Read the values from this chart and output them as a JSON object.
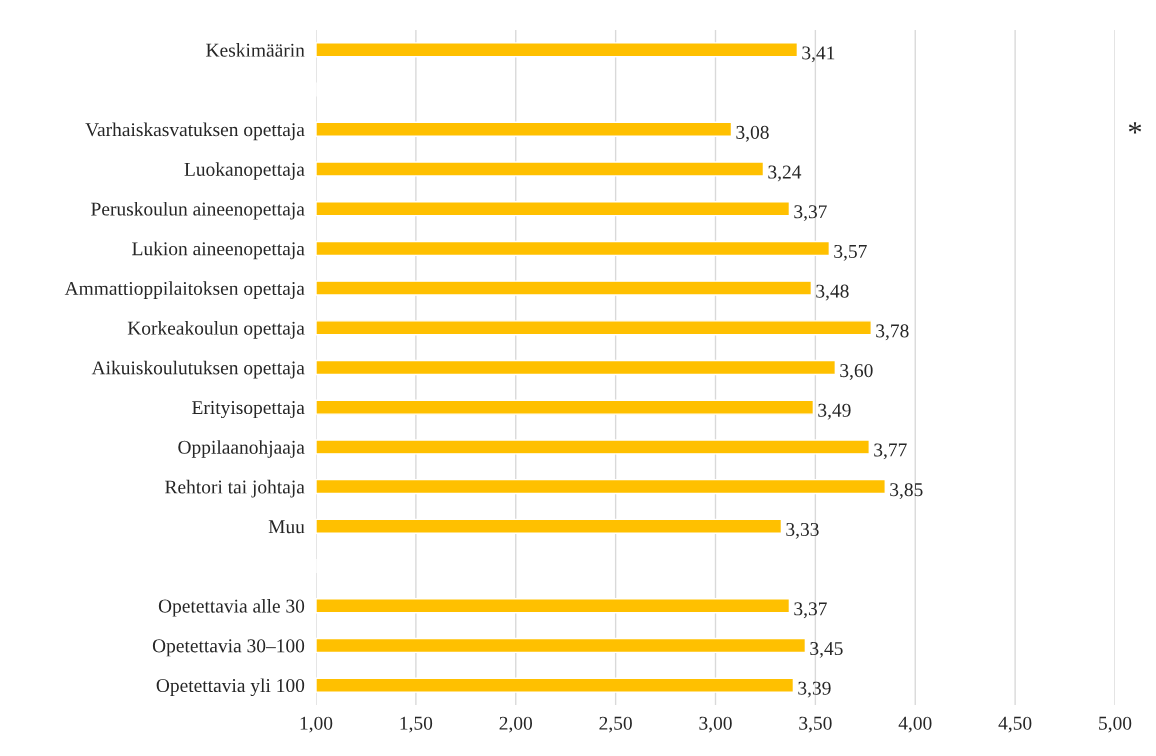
{
  "chart_data": {
    "type": "bar",
    "orientation": "horizontal",
    "categories": [
      "Keskimäärin",
      null,
      "Varhaiskasvatuksen opettaja",
      "Luokanopettaja",
      "Peruskoulun aineenopettaja",
      "Lukion aineenopettaja",
      "Ammattioppilaitoksen opettaja",
      "Korkeakoulun opettaja",
      "Aikuiskoulutuksen opettaja",
      "Erityisopettaja",
      "Oppilaanohjaaja",
      "Rehtori tai johtaja",
      "Muu",
      null,
      "Opetettavia alle 30",
      "Opetettavia 30–100",
      "Opetettavia yli 100"
    ],
    "values": [
      3.41,
      null,
      3.08,
      3.24,
      3.37,
      3.57,
      3.48,
      3.78,
      3.6,
      3.49,
      3.77,
      3.85,
      3.33,
      null,
      3.37,
      3.45,
      3.39
    ],
    "value_labels": [
      "3,41",
      null,
      "3,08",
      "3,24",
      "3,37",
      "3,57",
      "3,48",
      "3,78",
      "3,60",
      "3,49",
      "3,77",
      "3,85",
      "3,33",
      null,
      "3,37",
      "3,45",
      "3,39"
    ],
    "color": "#ffc000",
    "xlim": [
      1,
      5
    ],
    "xticks": [
      {
        "value": 1,
        "label": "1,00"
      },
      {
        "value": 1.5,
        "label": "1,50"
      },
      {
        "value": 2,
        "label": "2,00"
      },
      {
        "value": 2.5,
        "label": "2,50"
      },
      {
        "value": 3,
        "label": "3,00"
      },
      {
        "value": 3.5,
        "label": "3,50"
      },
      {
        "value": 4,
        "label": "4,00"
      },
      {
        "value": 4.5,
        "label": "4,50"
      },
      {
        "value": 5,
        "label": "5,00"
      }
    ],
    "grid": "x",
    "annotations": [
      "*"
    ]
  }
}
